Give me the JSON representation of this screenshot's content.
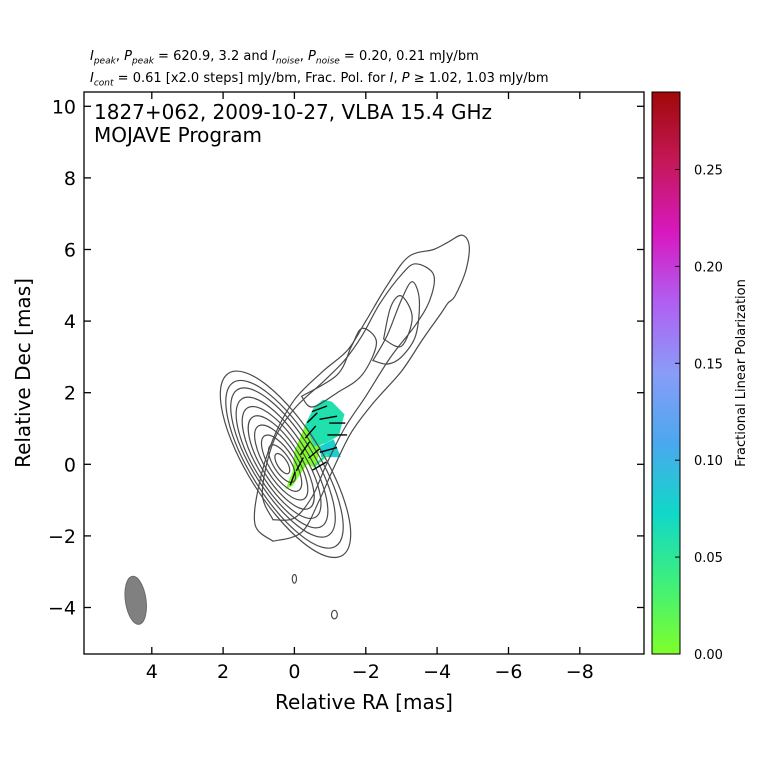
{
  "header": {
    "line1": {
      "p1": "I",
      "s1": "peak",
      "p2": ", ",
      "p3": "P",
      "s2": "peak",
      "p4": " = 620.9, 3.2 and ",
      "p5": "I",
      "s3": "noise",
      "p6": ", ",
      "p7": "P",
      "s4": "noise",
      "p8": " = 0.20, 0.21 mJy/bm"
    },
    "line2": {
      "p1": "I",
      "s1": "cont",
      "p2": " = 0.61 [x2.0 steps] mJy/bm, Frac. Pol. for ",
      "p3": "I",
      "p4": ", ",
      "p5": "P",
      "p6": " ≥ 1.02, 1.03 mJy/bm"
    }
  },
  "colors": {
    "contour": "#4a4a4a",
    "beam": "#808080",
    "vector": "#000000",
    "colorbar_stops": [
      "#7fff2a",
      "#3ff07a",
      "#10d8c8",
      "#4aa8ee",
      "#8a9cf8",
      "#b05ff2",
      "#d818c0",
      "#c41858",
      "#a00808"
    ]
  },
  "chart_data": {
    "type": "contour",
    "title_lines": [
      "1827+062, 2009-10-27, VLBA 15.4 GHz",
      "MOJAVE Program"
    ],
    "xlabel": "Relative RA [mas]",
    "ylabel": "Relative Dec [mas]",
    "xlim": [
      5.9,
      -9.8
    ],
    "ylim": [
      -5.3,
      10.4
    ],
    "xticks": [
      4,
      2,
      0,
      -2,
      -4,
      -6,
      -8
    ],
    "xtick_labels": [
      "4",
      "2",
      "0",
      "−2",
      "−4",
      "−6",
      "−8"
    ],
    "yticks": [
      -4,
      -2,
      0,
      2,
      4,
      6,
      8,
      10
    ],
    "ytick_labels": [
      "−4",
      "−2",
      "0",
      "2",
      "4",
      "6",
      "8",
      "10"
    ],
    "beam": {
      "ra": 4.45,
      "dec": -3.8,
      "major_mas": 1.35,
      "minor_mas": 0.58,
      "pa_deg": -8
    },
    "jet_contours": [
      {
        "cx": 0.25,
        "cy": 0.0,
        "a": 3.0,
        "b": 1.05
      },
      {
        "cx": 0.28,
        "cy": 0.0,
        "a": 2.7,
        "b": 0.95
      },
      {
        "cx": 0.32,
        "cy": 0.05,
        "a": 2.4,
        "b": 0.85
      },
      {
        "cx": 0.35,
        "cy": 0.05,
        "a": 2.1,
        "b": 0.75
      },
      {
        "cx": 0.36,
        "cy": 0.05,
        "a": 1.8,
        "b": 0.65
      },
      {
        "cx": 0.37,
        "cy": 0.05,
        "a": 1.5,
        "b": 0.55
      },
      {
        "cx": 0.37,
        "cy": 0.05,
        "a": 1.2,
        "b": 0.45
      },
      {
        "cx": 0.36,
        "cy": 0.03,
        "a": 0.9,
        "b": 0.35
      },
      {
        "cx": 0.35,
        "cy": 0.02,
        "a": 0.6,
        "b": 0.24
      },
      {
        "cx": 0.34,
        "cy": 0.02,
        "a": 0.32,
        "b": 0.14
      }
    ],
    "jet_pa_deg": -32,
    "outer_contours": [
      [
        [
          0.6,
          -2.15
        ],
        [
          1.1,
          -1.7
        ],
        [
          1.0,
          -0.6
        ],
        [
          0.6,
          0.7
        ],
        [
          0.0,
          1.8
        ],
        [
          -0.8,
          2.6
        ],
        [
          -1.5,
          3.2
        ],
        [
          -2.0,
          4.0
        ],
        [
          -2.6,
          5.0
        ],
        [
          -3.2,
          5.8
        ],
        [
          -3.9,
          6.0
        ],
        [
          -4.3,
          6.2
        ],
        [
          -4.7,
          6.4
        ],
        [
          -4.9,
          6.1
        ],
        [
          -4.8,
          5.4
        ],
        [
          -4.5,
          4.7
        ],
        [
          -4.3,
          4.5
        ],
        [
          -4.1,
          4.2
        ],
        [
          -3.6,
          3.5
        ],
        [
          -3.0,
          2.6
        ],
        [
          -2.2,
          1.7
        ],
        [
          -1.6,
          0.9
        ],
        [
          -1.1,
          -0.1
        ],
        [
          -0.7,
          -1.0
        ],
        [
          -0.2,
          -1.9
        ],
        [
          0.6,
          -2.15
        ]
      ],
      [
        [
          0.6,
          -1.55
        ],
        [
          0.9,
          -0.8
        ],
        [
          0.6,
          0.6
        ],
        [
          0.0,
          1.55
        ],
        [
          -0.8,
          2.3
        ],
        [
          -1.4,
          2.9
        ],
        [
          -1.9,
          3.6
        ],
        [
          -2.4,
          4.5
        ],
        [
          -3.0,
          5.3
        ],
        [
          -3.4,
          5.6
        ],
        [
          -3.9,
          5.3
        ],
        [
          -3.8,
          4.6
        ],
        [
          -3.4,
          3.9
        ],
        [
          -2.7,
          3.0
        ],
        [
          -2.0,
          1.9
        ],
        [
          -1.4,
          1.0
        ],
        [
          -0.9,
          0.0
        ],
        [
          -0.5,
          -0.9
        ],
        [
          0.0,
          -1.5
        ],
        [
          0.6,
          -1.55
        ]
      ],
      [
        [
          -0.2,
          1.9
        ],
        [
          -1.2,
          2.5
        ],
        [
          -1.6,
          3.3
        ],
        [
          -1.9,
          3.8
        ],
        [
          -2.3,
          3.4
        ],
        [
          -1.9,
          2.5
        ],
        [
          -1.2,
          2.0
        ],
        [
          -0.5,
          1.6
        ],
        [
          -0.2,
          1.9
        ]
      ],
      [
        [
          -2.2,
          2.9
        ],
        [
          -2.6,
          3.6
        ],
        [
          -3.0,
          4.6
        ],
        [
          -3.3,
          5.1
        ],
        [
          -3.5,
          4.6
        ],
        [
          -3.4,
          3.6
        ],
        [
          -3.0,
          3.0
        ],
        [
          -2.6,
          2.8
        ],
        [
          -2.2,
          2.9
        ]
      ],
      [
        [
          -2.5,
          3.5
        ],
        [
          -2.7,
          4.4
        ],
        [
          -3.0,
          4.7
        ],
        [
          -3.3,
          4.1
        ],
        [
          -3.0,
          3.3
        ],
        [
          -2.5,
          3.5
        ]
      ]
    ],
    "small_contours": [
      {
        "ra": 0.0,
        "dec": -3.2,
        "rx": 0.06,
        "ry": 0.12
      },
      {
        "ra": -1.12,
        "dec": -4.2,
        "rx": 0.08,
        "ry": 0.12
      }
    ],
    "fractional_polarization": [
      {
        "polygon": [
          [
            0.25,
            -0.7
          ],
          [
            0.05,
            -0.2
          ],
          [
            0.0,
            0.35
          ],
          [
            -0.3,
            1.1
          ],
          [
            -0.6,
            1.2
          ],
          [
            -0.75,
            0.6
          ],
          [
            -0.6,
            -0.1
          ],
          [
            -0.35,
            0.0
          ],
          [
            0.05,
            -0.6
          ],
          [
            0.25,
            -0.7
          ]
        ],
        "value": 0.0
      },
      {
        "polygon": [
          [
            -0.3,
            1.1
          ],
          [
            -0.55,
            1.6
          ],
          [
            -0.8,
            1.8
          ],
          [
            -1.05,
            1.75
          ],
          [
            -1.4,
            1.4
          ],
          [
            -1.25,
            0.8
          ],
          [
            -0.9,
            0.6
          ],
          [
            -0.75,
            0.55
          ],
          [
            -0.55,
            0.5
          ],
          [
            -0.3,
            1.1
          ]
        ],
        "value": 0.06
      },
      {
        "polygon": [
          [
            -0.7,
            0.5
          ],
          [
            -1.1,
            0.7
          ],
          [
            -1.3,
            0.2
          ],
          [
            -1.0,
            0.2
          ],
          [
            -0.75,
            0.2
          ],
          [
            -0.7,
            0.5
          ]
        ],
        "value": 0.08
      },
      {
        "polygon": [
          [
            -0.55,
            -0.1
          ],
          [
            -0.95,
            0.25
          ],
          [
            -0.9,
            0.3
          ],
          [
            -0.55,
            0.0
          ],
          [
            -0.55,
            -0.1
          ]
        ],
        "value": 0.04
      }
    ],
    "polarization_vectors": [
      {
        "ra": 0.05,
        "dec": -0.4,
        "len": 0.4,
        "angle_deg": 70
      },
      {
        "ra": -0.15,
        "dec": 0.0,
        "len": 0.42,
        "angle_deg": 62
      },
      {
        "ra": -0.3,
        "dec": 0.45,
        "len": 0.45,
        "angle_deg": 55
      },
      {
        "ra": -0.45,
        "dec": 0.9,
        "len": 0.45,
        "angle_deg": 50
      },
      {
        "ra": -0.5,
        "dec": 1.3,
        "len": 0.4,
        "angle_deg": 45
      },
      {
        "ra": -0.7,
        "dec": 1.55,
        "len": 0.45,
        "angle_deg": 20
      },
      {
        "ra": -0.95,
        "dec": 1.3,
        "len": 0.5,
        "angle_deg": 10
      },
      {
        "ra": -1.2,
        "dec": 1.15,
        "len": 0.45,
        "angle_deg": 0
      },
      {
        "ra": -1.2,
        "dec": 0.82,
        "len": 0.55,
        "angle_deg": 0
      },
      {
        "ra": -0.95,
        "dec": 0.4,
        "len": 0.5,
        "angle_deg": 15
      },
      {
        "ra": -0.7,
        "dec": -0.05,
        "len": 0.45,
        "angle_deg": 30
      },
      {
        "ra": -0.55,
        "dec": 0.3,
        "len": 0.4,
        "angle_deg": 40
      }
    ],
    "colorbar": {
      "label": "Fractional Linear Polarization",
      "range": [
        0.0,
        0.29
      ],
      "ticks": [
        0.0,
        0.05,
        0.1,
        0.15,
        0.2,
        0.25
      ],
      "tick_labels": [
        "0.00",
        "0.05",
        "0.10",
        "0.15",
        "0.20",
        "0.25"
      ]
    }
  }
}
